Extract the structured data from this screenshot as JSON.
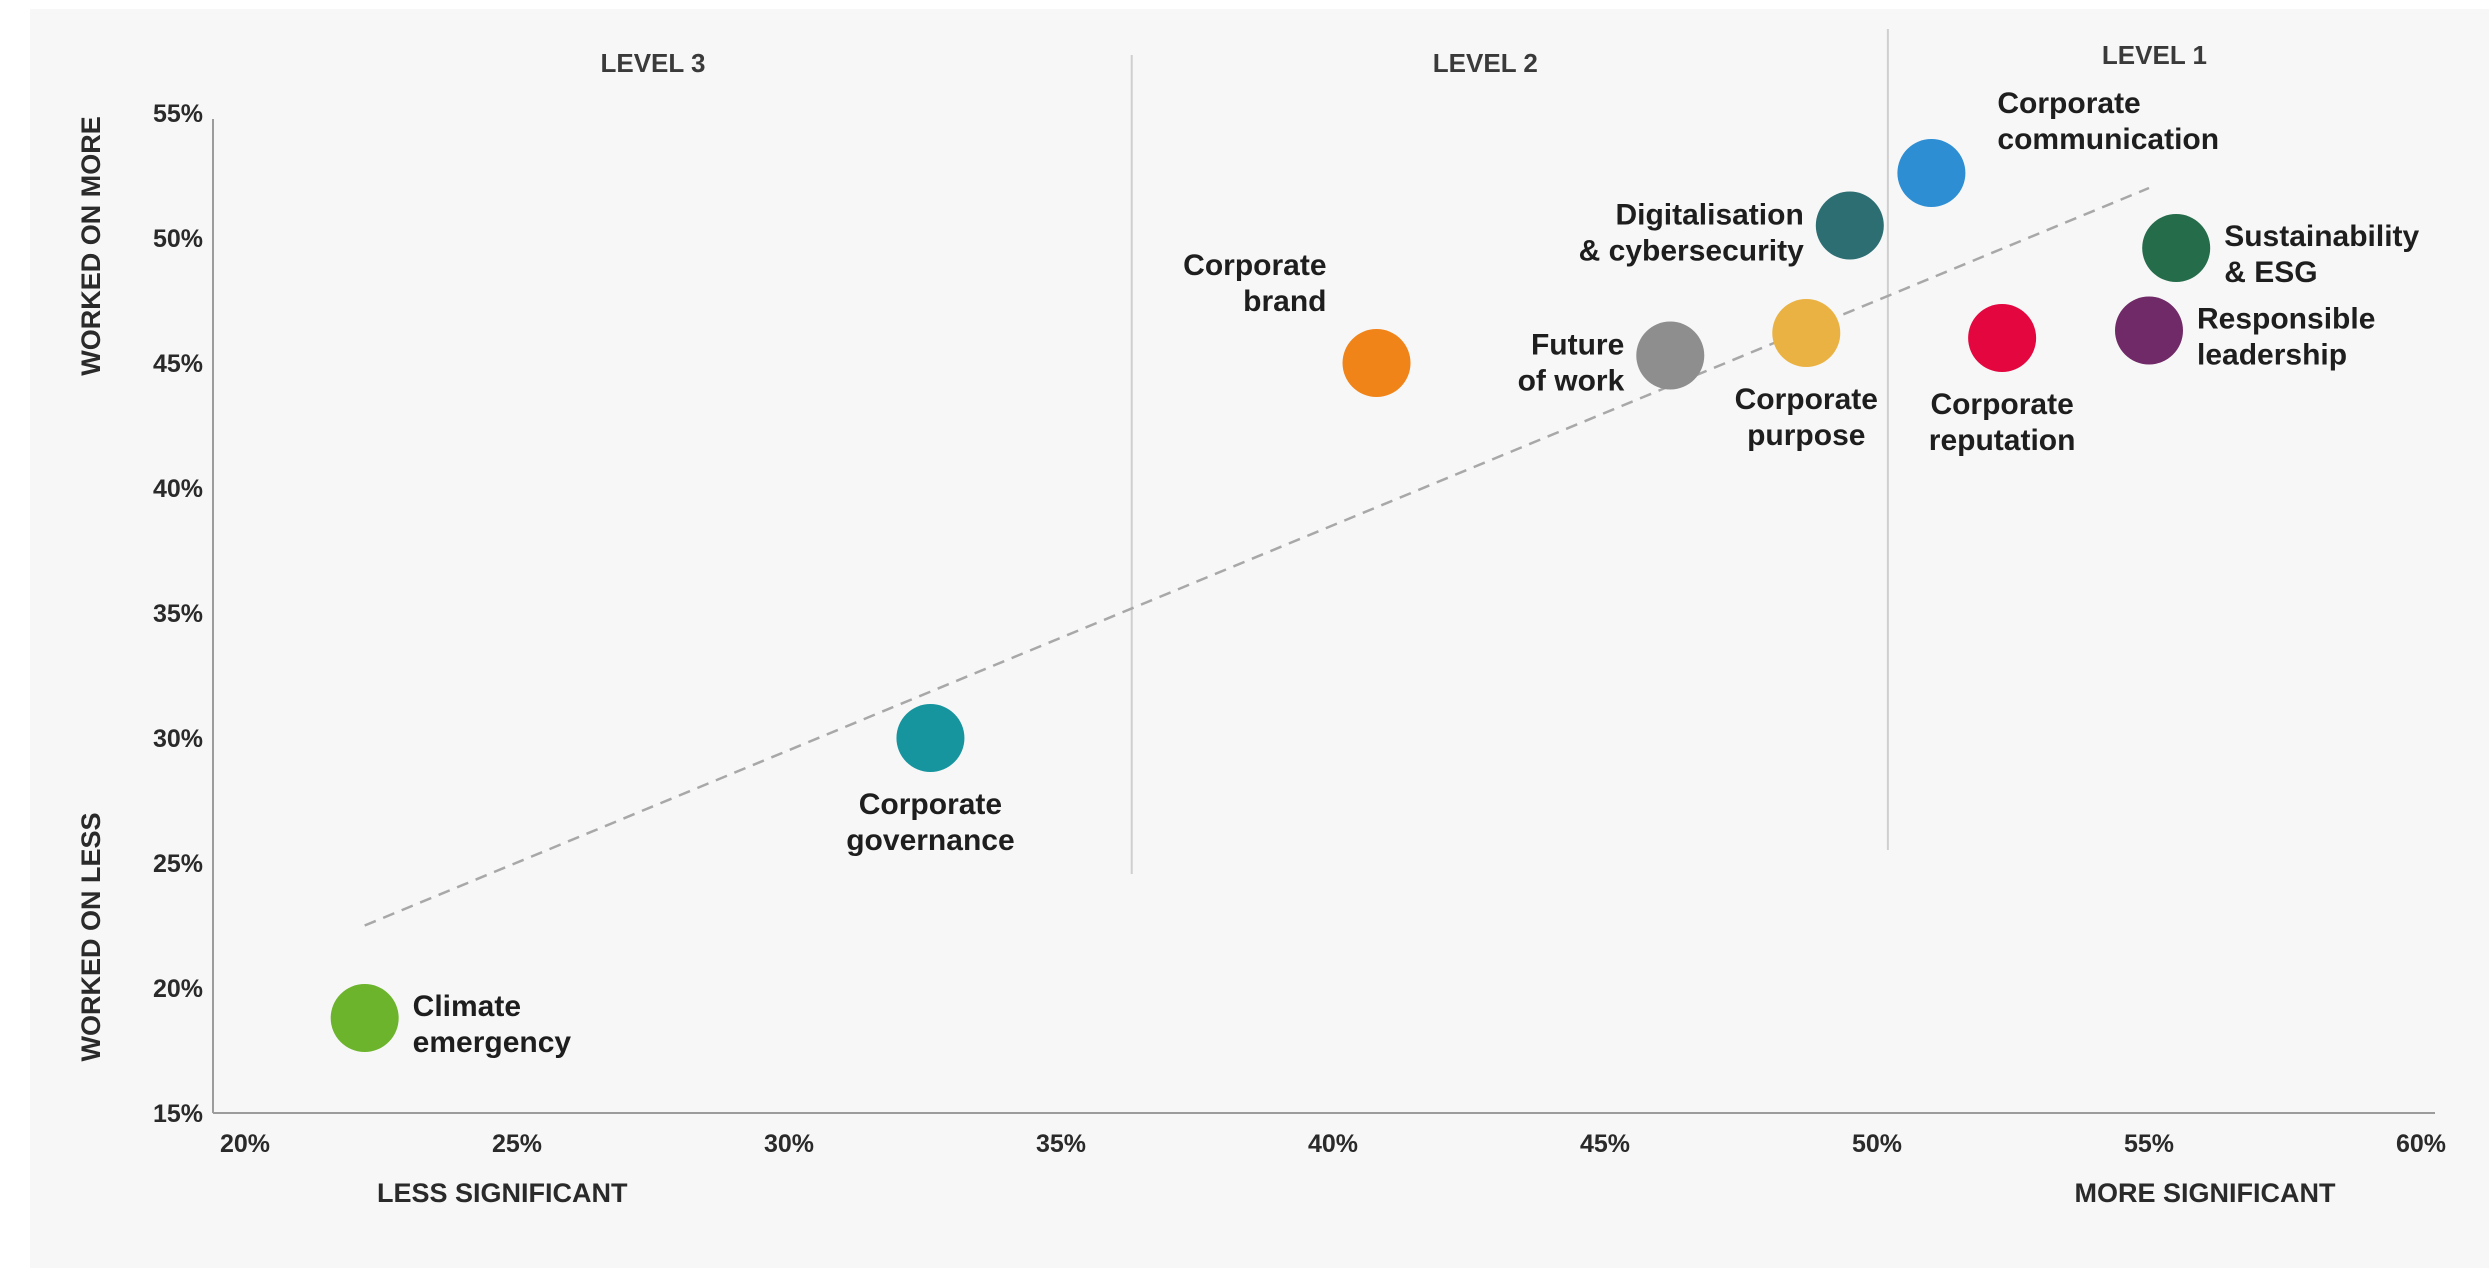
{
  "chart_data": {
    "type": "scatter",
    "x_ticks": [
      "20%",
      "25%",
      "30%",
      "35%",
      "40%",
      "45%",
      "50%",
      "55%",
      "60%"
    ],
    "y_ticks": [
      "55%",
      "50%",
      "45%",
      "40%",
      "35%",
      "30%",
      "25%",
      "20%",
      "15%"
    ],
    "xlim": [
      20,
      60
    ],
    "ylim": [
      15,
      55
    ],
    "x_axis_captions": {
      "left": "LESS SIGNIFICANT",
      "right": "MORE SIGNIFICANT"
    },
    "y_axis_captions": {
      "top": "WORKED ON MORE",
      "bottom": "WORKED ON LESS"
    },
    "level_dividers_x": [
      36.3,
      50.2
    ],
    "levels": [
      {
        "label": "LEVEL 3",
        "x": 27.5
      },
      {
        "label": "LEVEL 2",
        "x": 42.8
      },
      {
        "label": "LEVEL 1",
        "x": 55.1
      }
    ],
    "trendline": {
      "from": [
        22.2,
        22.5
      ],
      "to": [
        55.0,
        52.0
      ]
    },
    "points": [
      {
        "lines": [
          "Climate",
          "emergency"
        ],
        "x": 22.2,
        "y": 18.8,
        "color": "#6db42d",
        "label_pos": "right"
      },
      {
        "lines": [
          "Corporate",
          "governance"
        ],
        "x": 32.6,
        "y": 30.0,
        "color": "#17959f",
        "label_pos": "below"
      },
      {
        "lines": [
          "Corporate",
          "brand"
        ],
        "x": 40.8,
        "y": 45.0,
        "color": "#f08419",
        "label_pos": "above-left"
      },
      {
        "lines": [
          "Future",
          "of work"
        ],
        "x": 46.2,
        "y": 45.3,
        "color": "#8e8e8e",
        "label_pos": "left"
      },
      {
        "lines": [
          "Corporate",
          "purpose"
        ],
        "x": 48.7,
        "y": 46.2,
        "color": "#eab242",
        "label_pos": "below"
      },
      {
        "lines": [
          "Digitalisation",
          "& cybersecurity"
        ],
        "x": 49.5,
        "y": 50.5,
        "color": "#2d6e73",
        "label_pos": "left"
      },
      {
        "lines": [
          "Corporate",
          "communication"
        ],
        "x": 51.0,
        "y": 52.6,
        "color": "#2d8ed4",
        "label_pos": "above-right"
      },
      {
        "lines": [
          "Corporate",
          "reputation"
        ],
        "x": 52.3,
        "y": 46.0,
        "color": "#e3063f",
        "label_pos": "below"
      },
      {
        "lines": [
          "Responsible",
          "leadership"
        ],
        "x": 55.0,
        "y": 46.3,
        "color": "#702a67",
        "label_pos": "right"
      },
      {
        "lines": [
          "Sustainability",
          "& ESG"
        ],
        "x": 55.5,
        "y": 49.6,
        "color": "#246c4a",
        "label_pos": "right"
      }
    ]
  }
}
